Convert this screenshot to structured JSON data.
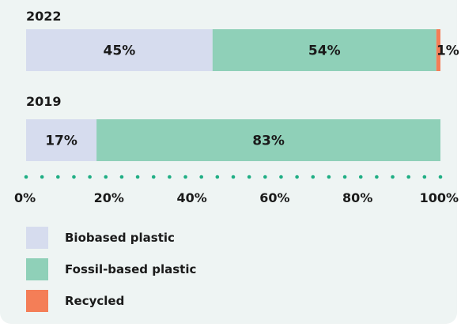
{
  "chart_data": {
    "type": "bar",
    "orientation": "horizontal",
    "stacked": true,
    "categories": [
      "2022",
      "2019"
    ],
    "series": [
      {
        "name": "Biobased plastic",
        "values": [
          45,
          17
        ],
        "labels": [
          "45%",
          "17%"
        ],
        "color": "#d6dcee"
      },
      {
        "name": "Fossil-based plastic",
        "values": [
          54,
          83
        ],
        "labels": [
          "54%",
          "83%"
        ],
        "color": "#8fd0b8"
      },
      {
        "name": "Recycled",
        "values": [
          1,
          0
        ],
        "labels": [
          "1%",
          ""
        ],
        "color": "#f47e57"
      }
    ],
    "xlim": [
      0,
      100
    ],
    "x_ticks": [
      "0%",
      "20%",
      "40%",
      "60%",
      "80%",
      "100%"
    ],
    "axis_style": "dotted",
    "legend_position": "bottom-left"
  }
}
